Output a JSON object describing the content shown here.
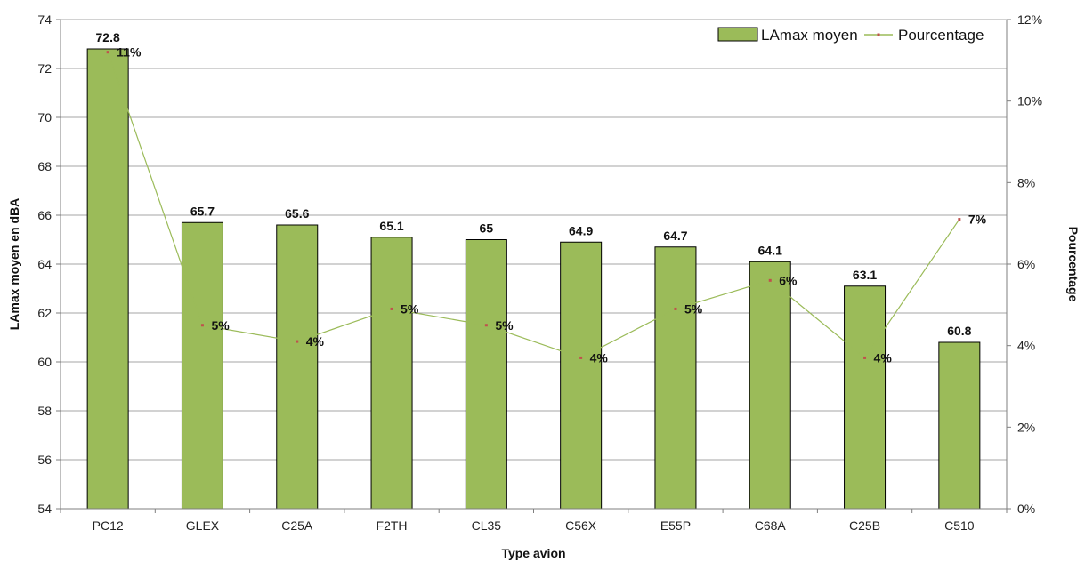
{
  "chart_data": {
    "type": "bar",
    "title": "",
    "xlabel": "Type avion",
    "ylabel": "LAmax moyen en dBA",
    "y2label": "Pourcentage",
    "categories": [
      "PC12",
      "GLEX",
      "C25A",
      "F2TH",
      "CL35",
      "C56X",
      "E55P",
      "C68A",
      "C25B",
      "C510"
    ],
    "ylim": [
      54,
      74
    ],
    "yticks": [
      54,
      56,
      58,
      60,
      62,
      64,
      66,
      68,
      70,
      72,
      74
    ],
    "y2lim": [
      0,
      12
    ],
    "y2ticks": [
      "0%",
      "2%",
      "4%",
      "6%",
      "8%",
      "10%",
      "12%"
    ],
    "grid": true,
    "legend_position": "top-right",
    "series": [
      {
        "name": "LAmax moyen",
        "kind": "bar",
        "axis": "left",
        "color": "#9bbb59",
        "values": [
          72.8,
          65.7,
          65.6,
          65.1,
          65.0,
          64.9,
          64.7,
          64.1,
          63.1,
          60.8
        ],
        "labels": [
          "72.8",
          "65.7",
          "65.6",
          "65.1",
          "65",
          "64.9",
          "64.7",
          "64.1",
          "63.1",
          "60.8"
        ]
      },
      {
        "name": "Pourcentage",
        "kind": "line",
        "axis": "right",
        "color": "#9bbb59",
        "marker_color": "#c0504d",
        "values": [
          11.2,
          4.5,
          4.1,
          4.9,
          4.5,
          3.7,
          4.9,
          5.6,
          3.7,
          7.1
        ],
        "labels": [
          "11%",
          "5%",
          "4%",
          "5%",
          "5%",
          "4%",
          "5%",
          "6%",
          "4%",
          "7%"
        ]
      }
    ]
  }
}
